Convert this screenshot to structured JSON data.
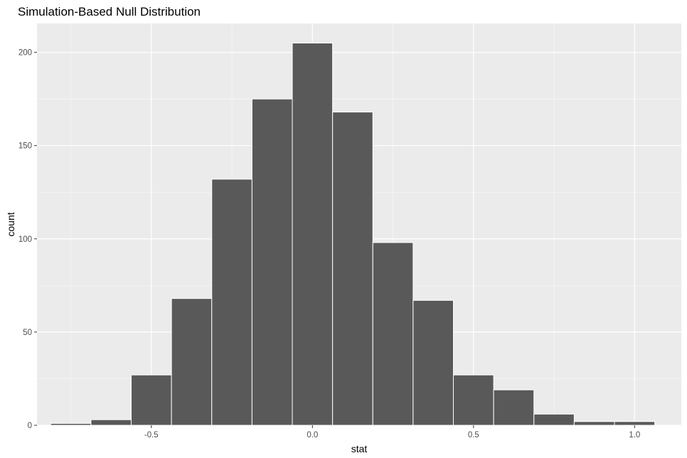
{
  "chart_data": {
    "type": "bar",
    "title": "Simulation-Based Null Distribution",
    "xlabel": "stat",
    "ylabel": "count",
    "xlim": [
      -0.855,
      1.145
    ],
    "ylim": [
      0,
      215.5
    ],
    "x_ticks": [
      -0.5,
      0.0,
      0.5,
      1.0
    ],
    "x_tick_labels": [
      "-0.5",
      "0.0",
      "0.5",
      "1.0"
    ],
    "y_ticks": [
      0,
      50,
      100,
      150,
      200
    ],
    "y_tick_labels": [
      "0",
      "50",
      "100",
      "150",
      "200"
    ],
    "bins": [
      {
        "x0": -0.8125,
        "x1": -0.6875,
        "count": 1
      },
      {
        "x0": -0.6875,
        "x1": -0.5625,
        "count": 3
      },
      {
        "x0": -0.5625,
        "x1": -0.4375,
        "count": 27
      },
      {
        "x0": -0.4375,
        "x1": -0.3125,
        "count": 68
      },
      {
        "x0": -0.3125,
        "x1": -0.1875,
        "count": 132
      },
      {
        "x0": -0.1875,
        "x1": -0.0625,
        "count": 175
      },
      {
        "x0": -0.0625,
        "x1": 0.0625,
        "count": 205
      },
      {
        "x0": 0.0625,
        "x1": 0.1875,
        "count": 168
      },
      {
        "x0": 0.1875,
        "x1": 0.3125,
        "count": 98
      },
      {
        "x0": 0.3125,
        "x1": 0.4375,
        "count": 67
      },
      {
        "x0": 0.4375,
        "x1": 0.5625,
        "count": 27
      },
      {
        "x0": 0.5625,
        "x1": 0.6875,
        "count": 19
      },
      {
        "x0": 0.6875,
        "x1": 0.8125,
        "count": 6
      },
      {
        "x0": 0.8125,
        "x1": 0.9375,
        "count": 2
      },
      {
        "x0": 0.9375,
        "x1": 1.0625,
        "count": 2
      }
    ],
    "grid": true,
    "legend": "none",
    "colors": {
      "panel_background": "#ebebeb",
      "grid_major": "#ffffff",
      "grid_minor": "#f5f5f5",
      "bar_fill": "#595959",
      "bar_outline": "#ffffff",
      "tick_mark": "#333333",
      "tick_text": "#4d4d4d",
      "text": "#000000"
    }
  }
}
